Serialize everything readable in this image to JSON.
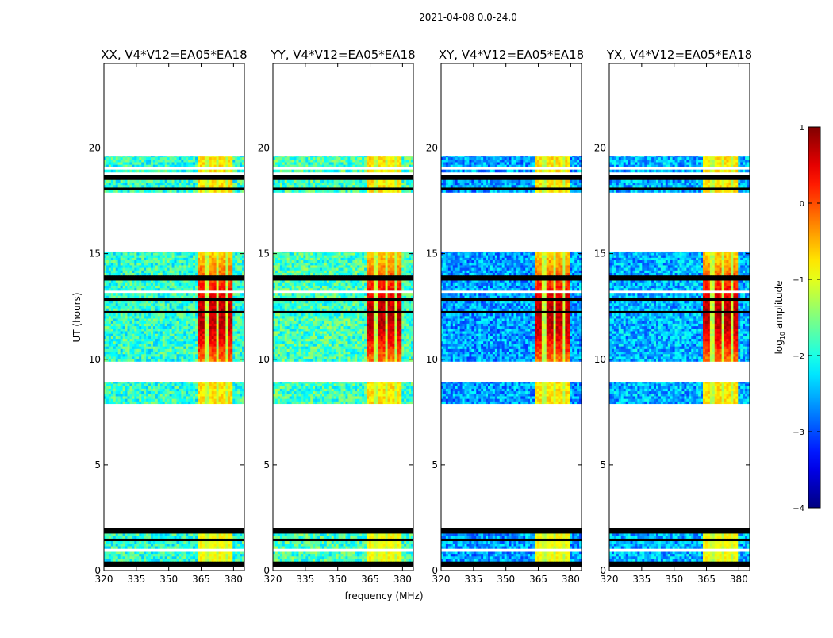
{
  "chart_data": {
    "type": "heatmap",
    "title": "2021-04-08 0.0-24.0",
    "xlabel": "frequency (MHz)",
    "ylabel": "UT (hours)",
    "xlim": [
      320,
      385
    ],
    "ylim": [
      0,
      24
    ],
    "x_ticks": [
      320,
      335,
      350,
      365,
      380
    ],
    "y_ticks": [
      0,
      5,
      10,
      15,
      20
    ],
    "colormap": "jet",
    "colorbar": {
      "label": "log10 amplitude",
      "label_prefix": "log",
      "label_sub": "10",
      "label_suffix": " amplitude",
      "range": [
        -4,
        1
      ],
      "ticks": [
        "1",
        "0",
        "−1",
        "−2",
        "−3",
        "−4"
      ],
      "tick_values": [
        1,
        0,
        -1,
        -2,
        -3,
        -4
      ],
      "footer": "....."
    },
    "panels": [
      {
        "title": "XX, V4*V12=EA05*EA18",
        "pol": "XX",
        "background_log10": -1.9
      },
      {
        "title": "YY, V4*V12=EA05*EA18",
        "pol": "YY",
        "background_log10": -1.8
      },
      {
        "title": "XY, V4*V12=EA05*EA18",
        "pol": "XY",
        "background_log10": -2.6
      },
      {
        "title": "YX, V4*V12=EA05*EA18",
        "pol": "YX",
        "background_log10": -2.5
      }
    ],
    "data_time_blocks_hours": [
      [
        0.2,
        2.0
      ],
      [
        7.9,
        8.9
      ],
      [
        9.9,
        15.1
      ],
      [
        17.9,
        19.6
      ]
    ],
    "rfi_band_MHz": [
      363,
      380
    ],
    "rfi_channel_gaps_MHz": [
      367.5,
      372.5,
      377.0
    ],
    "rfi_peak_log10": 0.7,
    "rfi_peak_time_hours": 12.0,
    "colors": {
      "axis": "#000000",
      "background": "#ffffff"
    }
  }
}
